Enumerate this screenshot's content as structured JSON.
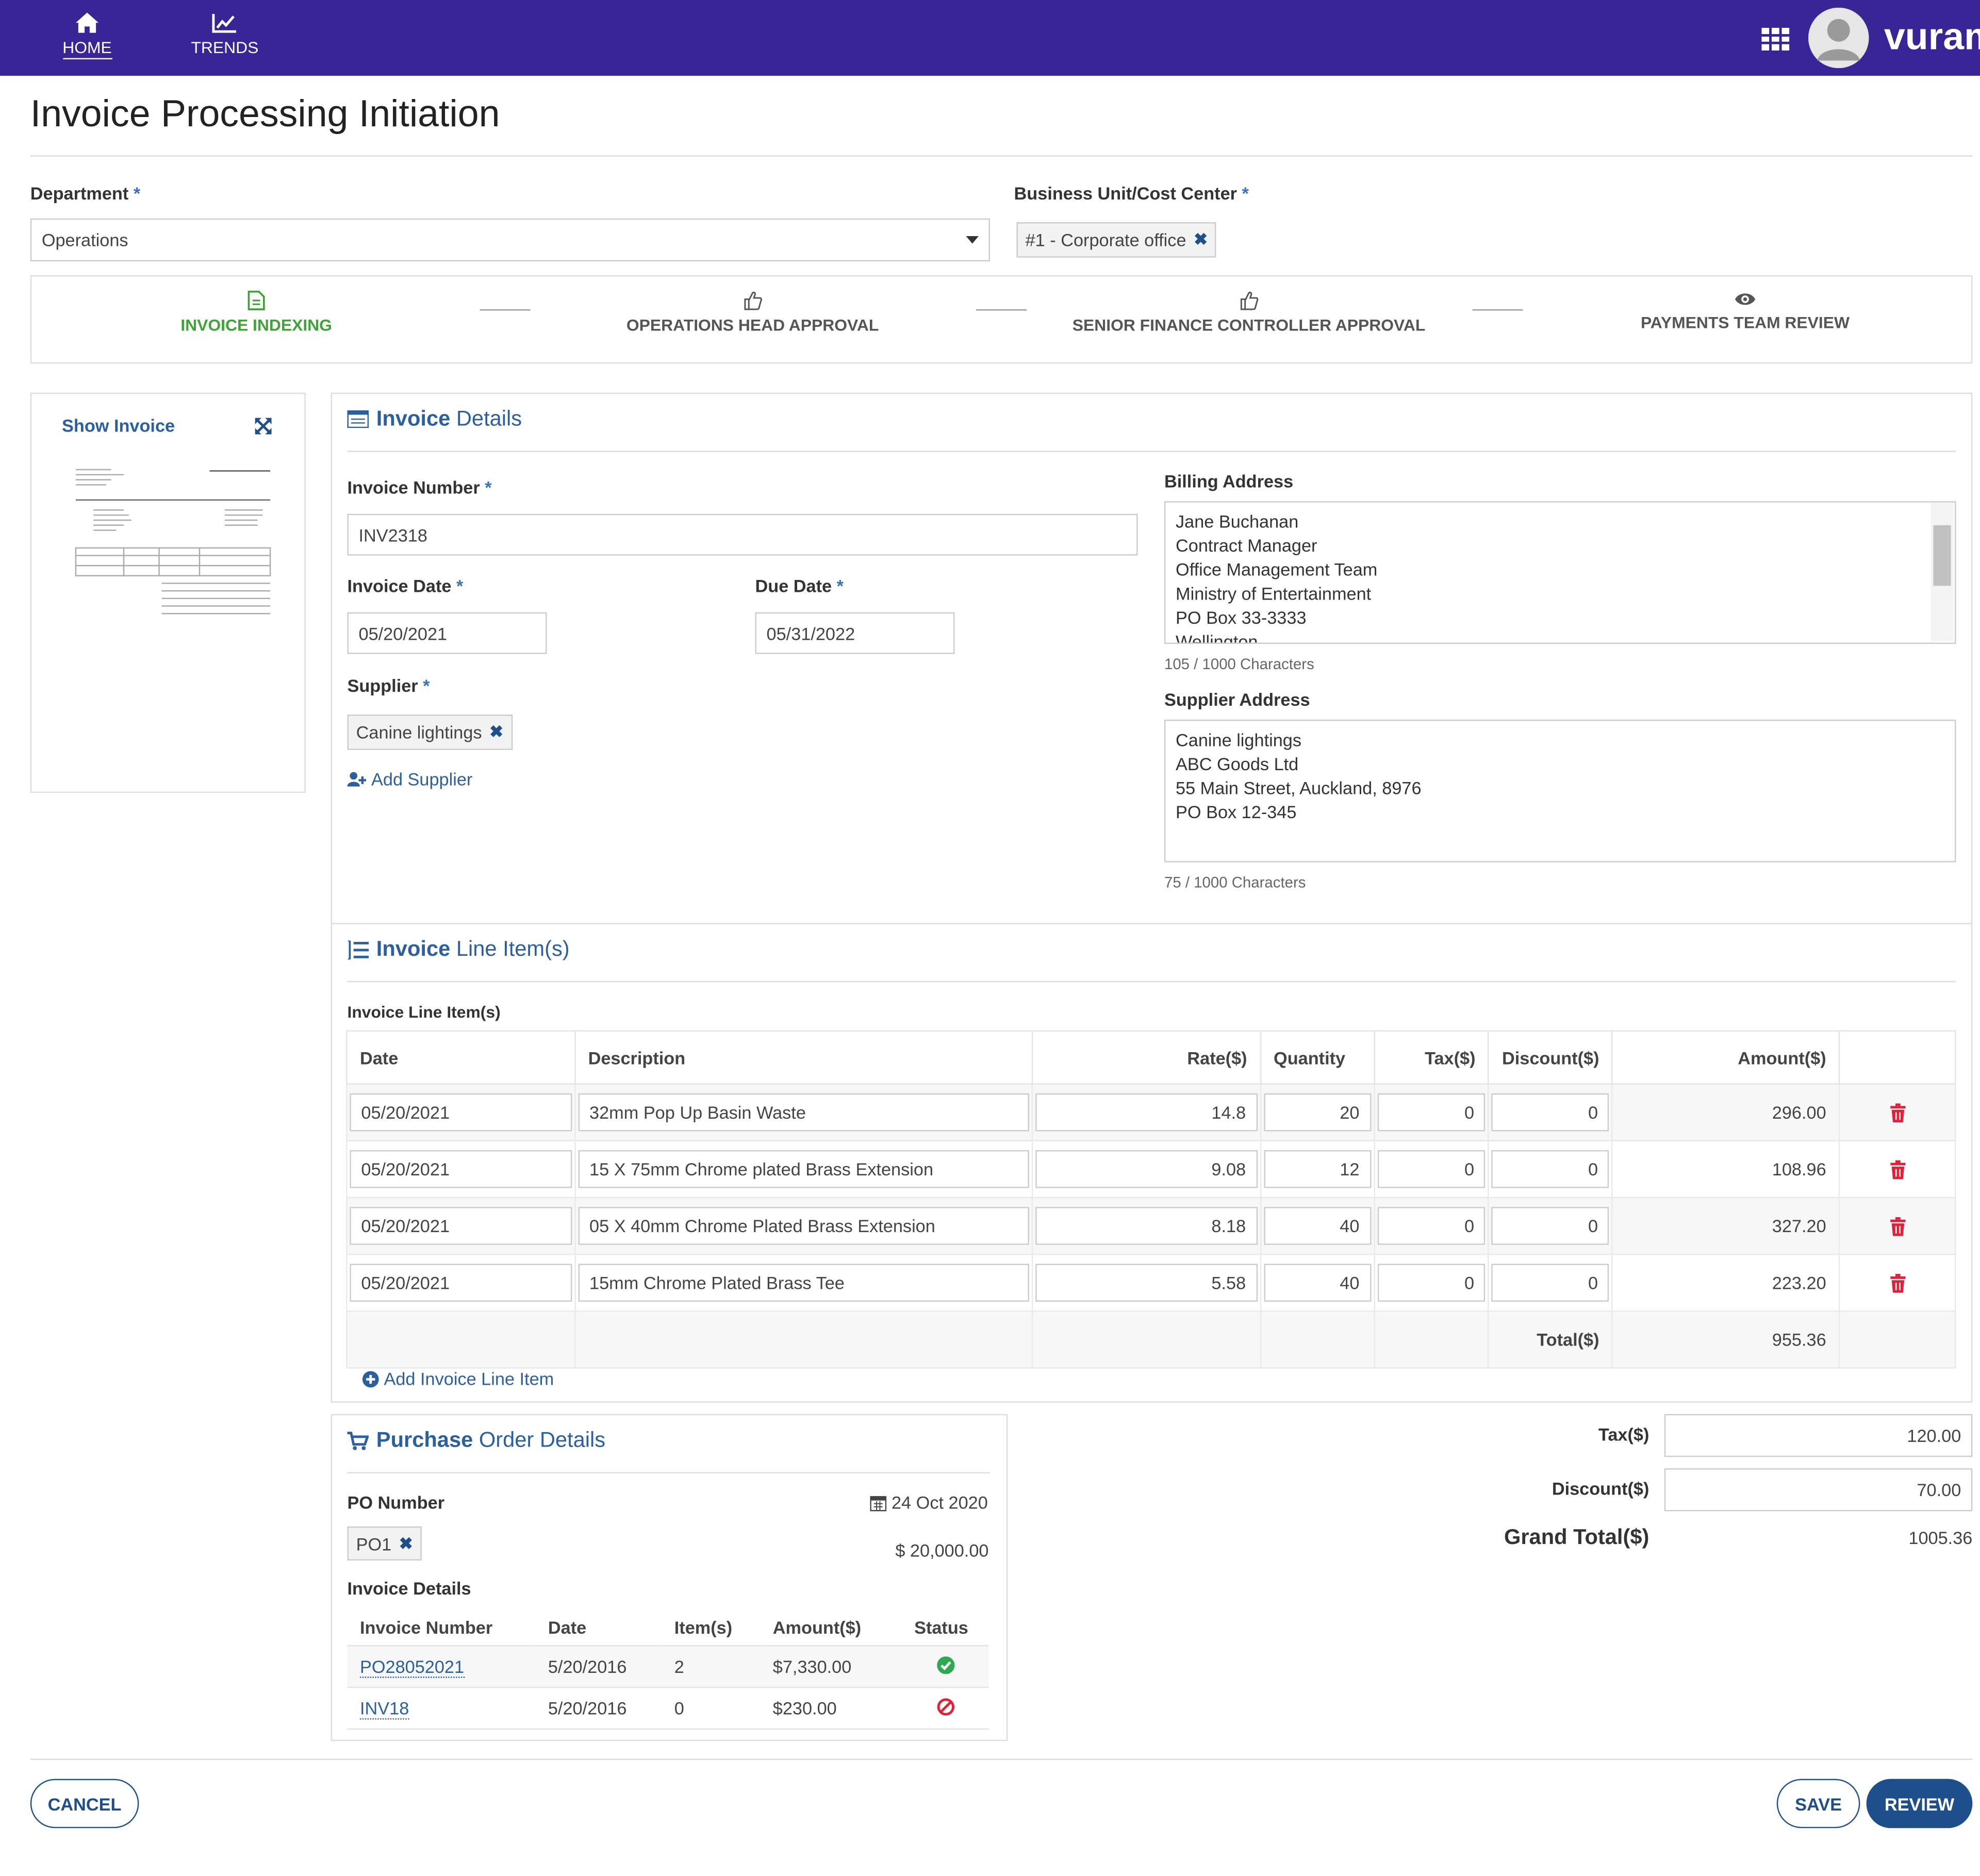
{
  "nav": {
    "home_label": "HOME",
    "trends_label": "TRENDS",
    "brand": "vuram",
    "grid_icon": "apps-grid-icon",
    "avatar_icon": "user-avatar-icon"
  },
  "page": {
    "title": "Invoice Processing Initiation"
  },
  "form": {
    "department_label": "Department",
    "department_value": "Operations",
    "business_unit_label": "Business Unit/Cost Center",
    "business_unit_value": "#1 - Corporate office"
  },
  "steps": [
    {
      "label": "INVOICE INDEXING",
      "icon": "document-icon",
      "active": true
    },
    {
      "label": "OPERATIONS HEAD APPROVAL",
      "icon": "thumbs-up-icon",
      "active": false
    },
    {
      "label": "SENIOR FINANCE CONTROLLER APPROVAL",
      "icon": "thumbs-up-icon",
      "active": false
    },
    {
      "label": "PAYMENTS TEAM REVIEW",
      "icon": "eye-icon",
      "active": false
    }
  ],
  "preview": {
    "title": "Show Invoice"
  },
  "invoice_details": {
    "title_bold": "Invoice",
    "title_rest": " Details",
    "invoice_number_label": "Invoice Number",
    "invoice_number": "INV2318",
    "invoice_date_label": "Invoice Date",
    "invoice_date": "05/20/2021",
    "due_date_label": "Due Date",
    "due_date": "05/31/2022",
    "supplier_label": "Supplier",
    "supplier": "Canine lightings",
    "add_supplier": "Add Supplier",
    "billing_address_label": "Billing Address",
    "billing_address_lines": [
      "Jane Buchanan",
      "Contract Manager",
      "Office Management Team",
      "Ministry of Entertainment",
      "PO Box 33-3333",
      "Wellington"
    ],
    "billing_count": "105 / 1000 Characters",
    "supplier_address_label": "Supplier Address",
    "supplier_address_lines": [
      "Canine lightings",
      "ABC Goods Ltd",
      "55 Main Street, Auckland, 8976",
      "PO Box 12-345"
    ],
    "supplier_count": "75 / 1000 Characters"
  },
  "line_items": {
    "title_bold": "Invoice",
    "title_rest": " Line Item(s)",
    "subtitle": "Invoice Line Item(s)",
    "headers": {
      "date": "Date",
      "description": "Description",
      "rate": "Rate($)",
      "quantity": "Quantity",
      "tax": "Tax($)",
      "discount": "Discount($)",
      "amount": "Amount($)"
    },
    "rows": [
      {
        "date": "05/20/2021",
        "description": "32mm Pop Up Basin Waste",
        "rate": "14.8",
        "quantity": "20",
        "tax": "0",
        "discount": "0",
        "amount": "296.00"
      },
      {
        "date": "05/20/2021",
        "description": "15 X 75mm Chrome plated Brass Extension",
        "rate": "9.08",
        "quantity": "12",
        "tax": "0",
        "discount": "0",
        "amount": "108.96"
      },
      {
        "date": "05/20/2021",
        "description": "05 X 40mm Chrome Plated Brass Extension",
        "rate": "8.18",
        "quantity": "40",
        "tax": "0",
        "discount": "0",
        "amount": "327.20"
      },
      {
        "date": "05/20/2021",
        "description": "15mm Chrome Plated Brass Tee",
        "rate": "5.58",
        "quantity": "40",
        "tax": "0",
        "discount": "0",
        "amount": "223.20"
      }
    ],
    "total_label": "Total($)",
    "total_value": "955.36",
    "add_line_item": "Add Invoice Line Item"
  },
  "purchase_order": {
    "title_bold": "Purchase",
    "title_rest": " Order Details",
    "po_number_label": "PO Number",
    "po_date": "24 Oct 2020",
    "po_value": "PO1",
    "po_amount": "$ 20,000.00",
    "invoice_details_label": "Invoice Details",
    "headers": {
      "number": "Invoice Number",
      "date": "Date",
      "items": "Item(s)",
      "amount": "Amount($)",
      "status": "Status"
    },
    "rows": [
      {
        "number": "PO28052021",
        "date": "5/20/2016",
        "items": "2",
        "amount": "$7,330.00",
        "status": "approved"
      },
      {
        "number": "INV18",
        "date": "5/20/2016",
        "items": "0",
        "amount": "$230.00",
        "status": "rejected"
      }
    ]
  },
  "summary": {
    "tax_label": "Tax($)",
    "tax_value": "120.00",
    "discount_label": "Discount($)",
    "discount_value": "70.00",
    "grand_total_label": "Grand Total($)",
    "grand_total_value": "1005.36"
  },
  "actions": {
    "cancel": "CANCEL",
    "save": "SAVE",
    "review": "REVIEW"
  },
  "colors": {
    "nav": "#3a2596",
    "active_step": "#3fa33a",
    "link": "#2b5f9e",
    "primary_button": "#1e4f8a",
    "trash": "#e0213a"
  }
}
